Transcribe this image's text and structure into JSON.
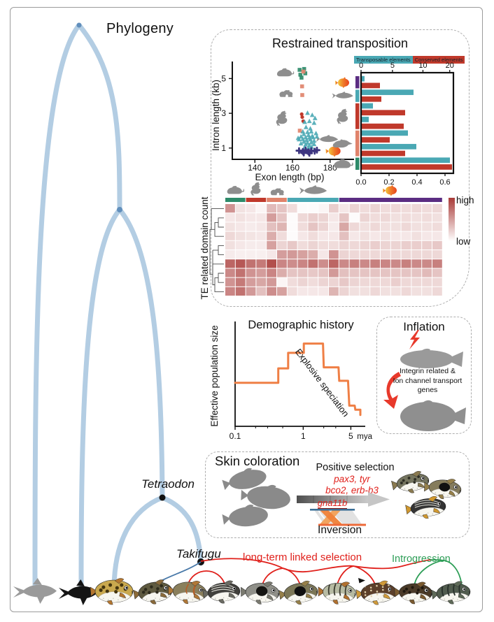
{
  "figure": {
    "phylogeny_label": "Phylogeny"
  },
  "tree": {
    "tetraodon_label": "Tetraodon",
    "takifugu_label": "Takifugu",
    "branch_color": "#b3cde3",
    "node_color_inner": "#618fbc",
    "node_color_named": "#111111"
  },
  "selection": {
    "linked_label": "long-term linked selection",
    "linked_color": "#e0201b",
    "introgression_label": "Introgression",
    "introgression_color": "#2e9e57",
    "outgroup_link_color": "#4878a8"
  },
  "bottom_fish": [
    {
      "name": "medaka-silhouette",
      "kind": "slim",
      "body": "#9a9a9a"
    },
    {
      "name": "dark-fish-silhouette",
      "kind": "slim",
      "body": "#141414"
    },
    {
      "name": "tetraodon-spotted-puffer",
      "kind": "puffer",
      "body": "#c9a84e",
      "pattern": "spots",
      "pcolor": "#44350f",
      "fin": "#b4762f"
    },
    {
      "name": "takifugu-1",
      "kind": "puffer",
      "body": "#5f5a40",
      "pattern": "spots",
      "pcolor": "#2e2b1c",
      "fin": "#8a6a3a"
    },
    {
      "name": "takifugu-2",
      "kind": "puffer",
      "body": "#8a7f5c",
      "pattern": "orangestripe",
      "pcolor": "#b55f28",
      "fin": "#b07838"
    },
    {
      "name": "takifugu-3",
      "kind": "puffer",
      "body": "#41403c",
      "pattern": "whitelines",
      "pcolor": "#d8d8d0",
      "fin": "#6a6a62"
    },
    {
      "name": "takifugu-4",
      "kind": "puffer",
      "body": "#8f8f88",
      "pattern": "blotch",
      "pcolor": "#151512",
      "fin": "#7a7a70"
    },
    {
      "name": "takifugu-5",
      "kind": "puffer",
      "body": "#7c7757",
      "pattern": "blotch",
      "pcolor": "#101010",
      "fin": "#96804a"
    },
    {
      "name": "takifugu-6",
      "kind": "puffer",
      "body": "#b7bba3",
      "pattern": "bars",
      "pcolor": "#3c3c30",
      "fin": "#b0702e"
    },
    {
      "name": "takifugu-7",
      "kind": "puffer",
      "body": "#5b3f2a",
      "pattern": "mottle",
      "pcolor": "#e3d3ae",
      "fin": "#cf9a3a",
      "marker": true
    },
    {
      "name": "takifugu-8",
      "kind": "puffer",
      "body": "#4a3a28",
      "pattern": "spots",
      "pcolor": "#20180e",
      "fin": "#7a5a30"
    },
    {
      "name": "takifugu-9",
      "kind": "puffer",
      "body": "#515c4e",
      "pattern": "bars",
      "pcolor": "#28302a",
      "fin": "#5e6a58"
    }
  ],
  "panels": {
    "restrained": {
      "title": "Restrained transposition"
    },
    "inflation": {
      "title": "Inflation",
      "lines": [
        "Integrin related &",
        "Ion channel transport",
        "genes"
      ],
      "accent": "#e8392b"
    },
    "skin": {
      "title": "Skin coloration",
      "positive": "Positive selection",
      "genes1": "pax3, tyr",
      "genes2": "bco2, erb-b3",
      "gene3": "gna11b",
      "inversion": "Inversion",
      "gene_color": "#e0201b"
    }
  },
  "chart_data": [
    {
      "id": "intron-exon-scatter",
      "type": "scatter",
      "xlabel": "Exon length (bp)",
      "ylabel": "Intron length (kb)",
      "xticks": [
        140,
        160,
        180
      ],
      "yticks": [
        1,
        3,
        5
      ],
      "xlim": [
        128,
        192
      ],
      "ylim": [
        0.35,
        5.9
      ],
      "series": [
        {
          "name": "mammals",
          "marker": "square",
          "color": "#2e8b6a",
          "points": [
            [
              163.8,
              5.5
            ],
            [
              166.2,
              5.55
            ],
            [
              164.2,
              5.22
            ],
            [
              166.8,
              5.3
            ],
            [
              164.8,
              5.05
            ]
          ]
        },
        {
          "name": "amphibians",
          "marker": "square",
          "color": "#e0836b",
          "points": [
            [
              165.8,
              5.4
            ],
            [
              165.1,
              4.55
            ],
            [
              165.2,
              4.05
            ],
            [
              163.9,
              2.0
            ]
          ]
        },
        {
          "name": "birds",
          "marker": "circle",
          "color": "#c0392b",
          "points": [
            [
              164.9,
              2.95
            ],
            [
              165.2,
              2.78
            ],
            [
              165.7,
              2.55
            ]
          ]
        },
        {
          "name": "fishes",
          "marker": "triangle",
          "color": "#4aa8b4",
          "points": [
            [
              168,
              3.02
            ],
            [
              170.5,
              2.9
            ],
            [
              172,
              2.72
            ],
            [
              169,
              2.55
            ],
            [
              166.5,
              2.5
            ],
            [
              171.5,
              2.45
            ],
            [
              167.2,
              2.2
            ],
            [
              169.5,
              2.12
            ],
            [
              165.5,
              1.95
            ],
            [
              168,
              1.92
            ],
            [
              170,
              1.95
            ],
            [
              172.5,
              1.85
            ],
            [
              166,
              1.8
            ],
            [
              168.5,
              1.75
            ],
            [
              170.5,
              1.7
            ],
            [
              164.5,
              1.66
            ],
            [
              167,
              1.62
            ],
            [
              169,
              1.6
            ],
            [
              171,
              1.62
            ],
            [
              173,
              1.66
            ],
            [
              163.5,
              1.5
            ],
            [
              165.5,
              1.52
            ],
            [
              167.5,
              1.46
            ],
            [
              169.5,
              1.5
            ],
            [
              171.5,
              1.42
            ],
            [
              166,
              1.36
            ],
            [
              168,
              1.3
            ],
            [
              170,
              1.32
            ],
            [
              164.5,
              1.26
            ],
            [
              167,
              1.2
            ],
            [
              169,
              1.16
            ],
            [
              171.5,
              1.22
            ],
            [
              166.5,
              1.06
            ],
            [
              168.5,
              1.02
            ],
            [
              170.2,
              1.06
            ],
            [
              163,
              1.58
            ]
          ]
        },
        {
          "name": "pufferfishes",
          "marker": "cross",
          "color": "#3d3580",
          "points": [
            [
              163.5,
              0.85
            ],
            [
              165.5,
              0.8
            ],
            [
              167,
              0.88
            ],
            [
              168.5,
              0.78
            ],
            [
              170,
              0.85
            ],
            [
              171.8,
              0.82
            ],
            [
              173,
              0.88
            ],
            [
              166,
              0.72
            ],
            [
              169,
              0.7
            ]
          ]
        }
      ],
      "silhouettes": [
        {
          "icon": "mouse",
          "x": 156,
          "y": 5.35
        },
        {
          "icon": "frog",
          "x": 156.5,
          "y": 4.15
        },
        {
          "icon": "chicken",
          "x": 154.5,
          "y": 2.72
        },
        {
          "icon": "fish",
          "x": 178.5,
          "y": 1.5
        },
        {
          "icon": "puffer",
          "x": 182,
          "y": 0.85
        }
      ]
    },
    {
      "id": "element-divergence-bars",
      "type": "bar",
      "legend": [
        {
          "label": "Transposable elements",
          "color": "#4aa8b4"
        },
        {
          "label": "Conserved  elements",
          "color": "#c0392b"
        }
      ],
      "top_ticks": [
        0,
        5,
        10,
        20
      ],
      "bottom_ticks": [
        "0.0",
        "0.2",
        "0.4",
        "0.6"
      ],
      "groups": [
        {
          "icon": "puffer",
          "strip": "#5b2d82",
          "pairs": [
            [
              0.02,
              0.13
            ]
          ]
        },
        {
          "icon": "fish",
          "strip": "#4aa8b4",
          "pairs": [
            [
              0.37,
              0.14
            ]
          ]
        },
        {
          "icon": "chicken",
          "strip": "#c0392b",
          "pairs": [
            [
              0.08,
              0.31
            ],
            [
              0.05,
              0.3
            ]
          ]
        },
        {
          "icon": "rat",
          "strip": "#e0836b",
          "pairs": [
            [
              0.33,
              0.2
            ],
            [
              0.39,
              0.31
            ]
          ]
        },
        {
          "icon": "mouse",
          "strip": "#2e8b6a",
          "pairs": [
            [
              0.63,
              0.645
            ]
          ]
        }
      ]
    },
    {
      "id": "te-domain-heatmap",
      "type": "heatmap",
      "ylabel": "TE related domain count",
      "legend_high": "high",
      "legend_low": "low",
      "high_color": "#a93b38",
      "col_groups": [
        {
          "color": "#2e8b6a",
          "span": 2
        },
        {
          "color": "#c0392b",
          "span": 2
        },
        {
          "color": "#e0836b",
          "span": 2
        },
        {
          "color": "#4aa8b4",
          "span": 5
        },
        {
          "color": "#5b2d82",
          "span": 10
        }
      ],
      "col_icons": [
        "mouse",
        "chicken",
        "frog",
        "fish",
        "puffer"
      ],
      "matrix": [
        [
          0.55,
          0.15,
          0.12,
          0.05,
          0.35,
          0.3,
          0.18,
          0.02,
          0.02,
          0.05,
          0.25,
          0.12,
          0.22,
          0.18,
          0.22,
          0.18,
          0.2,
          0.18,
          0.2,
          0.18,
          0.2
        ],
        [
          0.12,
          0.15,
          0.12,
          0.12,
          0.5,
          0.3,
          0.02,
          0.2,
          0.25,
          0.22,
          0.12,
          0.3,
          0.02,
          0.22,
          0.18,
          0.2,
          0.16,
          0.18,
          0.16,
          0.18,
          0.16
        ],
        [
          0.15,
          0.12,
          0.1,
          0.12,
          0.32,
          0.38,
          0.02,
          0.18,
          0.3,
          0.22,
          0.1,
          0.45,
          0.2,
          0.16,
          0.2,
          0.16,
          0.16,
          0.2,
          0.16,
          0.16,
          0.18
        ],
        [
          0.2,
          0.16,
          0.14,
          0.12,
          0.42,
          0.18,
          0.02,
          0.12,
          0.18,
          0.12,
          0.12,
          0.32,
          0.12,
          0.16,
          0.12,
          0.16,
          0.12,
          0.12,
          0.16,
          0.12,
          0.12
        ],
        [
          0.16,
          0.12,
          0.1,
          0.1,
          0.48,
          0.22,
          0.28,
          0.18,
          0.22,
          0.18,
          0.18,
          0.22,
          0.2,
          0.22,
          0.25,
          0.22,
          0.22,
          0.25,
          0.25,
          0.25,
          0.28
        ],
        [
          0.1,
          0.08,
          0.08,
          0.08,
          0.12,
          0.5,
          0.52,
          0.48,
          0.42,
          0.12,
          0.55,
          0.22,
          0.2,
          0.2,
          0.2,
          0.2,
          0.2,
          0.2,
          0.2,
          0.2,
          0.2
        ],
        [
          0.78,
          0.85,
          0.72,
          0.68,
          0.9,
          0.62,
          0.58,
          0.62,
          0.72,
          0.58,
          0.78,
          0.6,
          0.65,
          0.6,
          0.65,
          0.62,
          0.6,
          0.65,
          0.6,
          0.6,
          0.65
        ],
        [
          0.6,
          0.72,
          0.55,
          0.5,
          0.62,
          0.42,
          0.3,
          0.3,
          0.28,
          0.3,
          0.52,
          0.32,
          0.3,
          0.3,
          0.3,
          0.3,
          0.3,
          0.3,
          0.3,
          0.35,
          0.3
        ],
        [
          0.55,
          0.68,
          0.5,
          0.45,
          0.52,
          0.05,
          0.18,
          0.22,
          0.18,
          0.22,
          0.22,
          0.28,
          0.22,
          0.2,
          0.2,
          0.2,
          0.25,
          0.2,
          0.2,
          0.2,
          0.2
        ],
        [
          0.62,
          0.72,
          0.52,
          0.32,
          0.58,
          0.48,
          0.18,
          0.12,
          0.12,
          0.12,
          0.38,
          0.22,
          0.16,
          0.16,
          0.2,
          0.16,
          0.16,
          0.2,
          0.16,
          0.16,
          0.2
        ]
      ]
    },
    {
      "id": "demographic-history",
      "type": "line",
      "title": "Demographic history",
      "ylabel": "Effective population size",
      "x_unit": "mya",
      "xticks": [
        "0.1",
        "1",
        "5"
      ],
      "color": "#ef7f45",
      "annotation": "Explosive speciation",
      "points": [
        [
          0.1,
          0.42
        ],
        [
          0.43,
          0.42
        ],
        [
          0.43,
          0.56
        ],
        [
          0.6,
          0.56
        ],
        [
          0.6,
          0.71
        ],
        [
          1.02,
          0.71
        ],
        [
          1.02,
          0.8
        ],
        [
          1.95,
          0.8
        ],
        [
          2.0,
          0.57
        ],
        [
          3.3,
          0.57
        ],
        [
          3.38,
          0.44
        ],
        [
          4.55,
          0.44
        ],
        [
          4.75,
          0.2
        ],
        [
          5.7,
          0.2
        ],
        [
          5.82,
          0.16
        ],
        [
          6.9,
          0.16
        ],
        [
          6.9,
          0.11
        ]
      ]
    }
  ]
}
